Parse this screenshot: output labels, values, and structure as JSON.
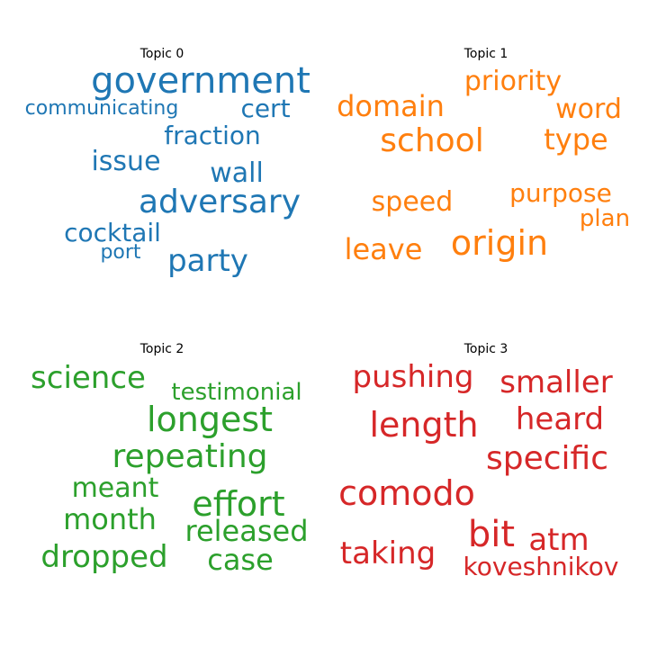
{
  "chart_data": [
    {
      "type": "wordcloud",
      "title": "Topic 0",
      "color": "#1f77b4",
      "words": [
        "government",
        "cert",
        "communicating",
        "fraction",
        "issue",
        "wall",
        "adversary",
        "cocktail",
        "port",
        "party"
      ]
    },
    {
      "type": "wordcloud",
      "title": "Topic 1",
      "color": "#ff7f0e",
      "words": [
        "priority",
        "domain",
        "word",
        "school",
        "type",
        "purpose",
        "speed",
        "plan",
        "origin",
        "leave"
      ]
    },
    {
      "type": "wordcloud",
      "title": "Topic 2",
      "color": "#2ca02c",
      "words": [
        "science",
        "testimonial",
        "longest",
        "repeating",
        "meant",
        "effort",
        "month",
        "released",
        "dropped",
        "case"
      ]
    },
    {
      "type": "wordcloud",
      "title": "Topic 3",
      "color": "#d62728",
      "words": [
        "pushing",
        "smaller",
        "heard",
        "length",
        "specific",
        "comodo",
        "bit",
        "atm",
        "taking",
        "koveshnikov"
      ]
    }
  ]
}
